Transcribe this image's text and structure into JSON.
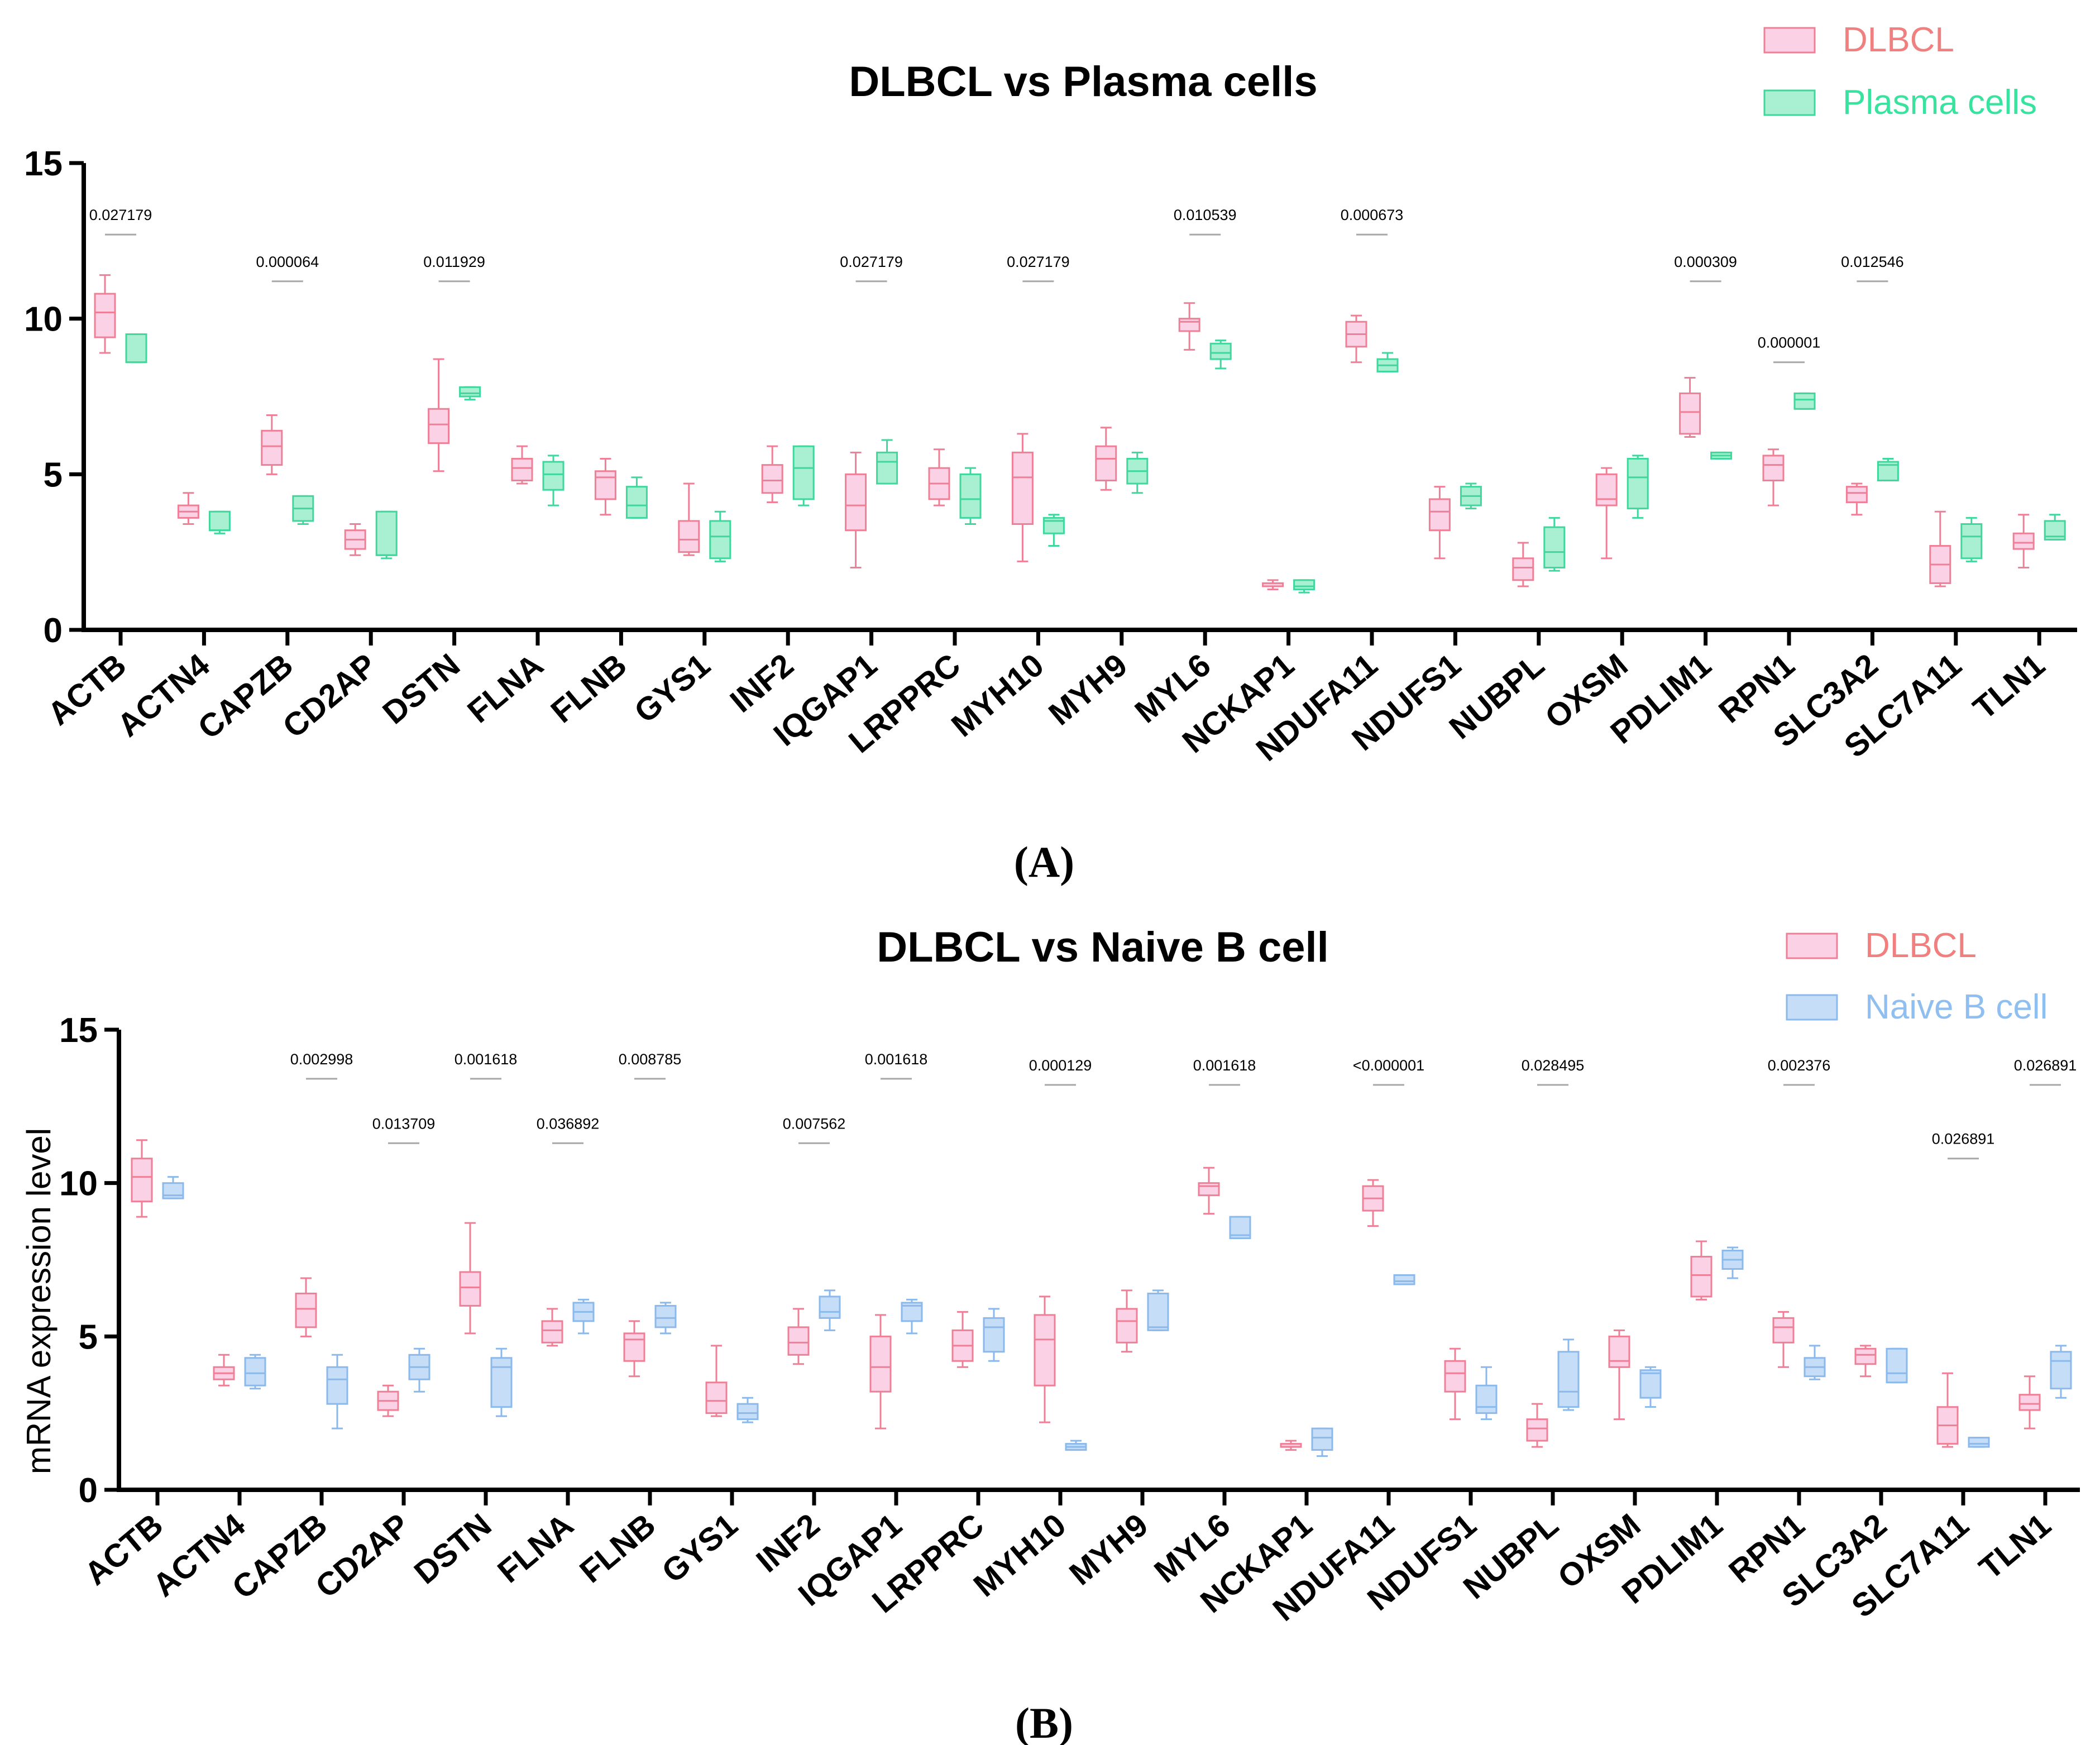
{
  "colors": {
    "dlbcl_fill": "#fbd1e6",
    "dlbcl_stroke": "#ef7f96",
    "plasma_fill": "#a9efd2",
    "plasma_stroke": "#3fd79c",
    "naive_fill": "#c5ddf7",
    "naive_stroke": "#8bb9ec",
    "dlbcl_text": "#f08080",
    "plasma_text": "#37e39e",
    "naive_text": "#8fbff0",
    "axis": "#000000",
    "pbar": "#a8a8a8"
  },
  "icons": [
    "legend-swatch-icon"
  ],
  "chart_data": [
    {
      "id": "A",
      "type": "box",
      "title": "DLBCL vs Plasma cells",
      "panel_label": "(A)",
      "ylabel": "",
      "ylim": [
        0,
        15
      ],
      "yticks": [
        "0",
        "5",
        "10",
        "15"
      ],
      "legend_position": "top-right",
      "legend": [
        "DLBCL",
        "Plasma cells"
      ],
      "categories": [
        "ACTB",
        "ACTN4",
        "CAPZB",
        "CD2AP",
        "DSTN",
        "FLNA",
        "FLNB",
        "GYS1",
        "INF2",
        "IQGAP1",
        "LRPPRC",
        "MYH10",
        "MYH9",
        "MYL6",
        "NCKAP1",
        "NDUFA11",
        "NDUFS1",
        "NUBPL",
        "OXSM",
        "PDLIM1",
        "RPN1",
        "SLC3A2",
        "SLC7A11",
        "TLN1"
      ],
      "series": [
        {
          "name": "DLBCL",
          "boxes": [
            {
              "min": 8.9,
              "q1": 9.4,
              "med": 10.2,
              "q3": 10.8,
              "max": 11.4
            },
            {
              "min": 3.4,
              "q1": 3.6,
              "med": 3.8,
              "q3": 4.0,
              "max": 4.4
            },
            {
              "min": 5.0,
              "q1": 5.3,
              "med": 5.9,
              "q3": 6.4,
              "max": 6.9
            },
            {
              "min": 2.4,
              "q1": 2.6,
              "med": 2.9,
              "q3": 3.2,
              "max": 3.4
            },
            {
              "min": 5.1,
              "q1": 6.0,
              "med": 6.6,
              "q3": 7.1,
              "max": 8.7
            },
            {
              "min": 4.7,
              "q1": 4.8,
              "med": 5.2,
              "q3": 5.5,
              "max": 5.9
            },
            {
              "min": 3.7,
              "q1": 4.2,
              "med": 4.9,
              "q3": 5.1,
              "max": 5.5
            },
            {
              "min": 2.4,
              "q1": 2.5,
              "med": 2.9,
              "q3": 3.5,
              "max": 4.7
            },
            {
              "min": 4.1,
              "q1": 4.4,
              "med": 4.8,
              "q3": 5.3,
              "max": 5.9
            },
            {
              "min": 2.0,
              "q1": 3.2,
              "med": 4.0,
              "q3": 5.0,
              "max": 5.7
            },
            {
              "min": 4.0,
              "q1": 4.2,
              "med": 4.7,
              "q3": 5.2,
              "max": 5.8
            },
            {
              "min": 2.2,
              "q1": 3.4,
              "med": 4.9,
              "q3": 5.7,
              "max": 6.3
            },
            {
              "min": 4.5,
              "q1": 4.8,
              "med": 5.5,
              "q3": 5.9,
              "max": 6.5
            },
            {
              "min": 9.0,
              "q1": 9.6,
              "med": 9.9,
              "q3": 10.0,
              "max": 10.5
            },
            {
              "min": 1.3,
              "q1": 1.4,
              "med": 1.4,
              "q3": 1.5,
              "max": 1.6
            },
            {
              "min": 8.6,
              "q1": 9.1,
              "med": 9.5,
              "q3": 9.9,
              "max": 10.1
            },
            {
              "min": 2.3,
              "q1": 3.2,
              "med": 3.8,
              "q3": 4.2,
              "max": 4.6
            },
            {
              "min": 1.4,
              "q1": 1.6,
              "med": 2.0,
              "q3": 2.3,
              "max": 2.8
            },
            {
              "min": 2.3,
              "q1": 4.0,
              "med": 4.2,
              "q3": 5.0,
              "max": 5.2
            },
            {
              "min": 6.2,
              "q1": 6.3,
              "med": 7.0,
              "q3": 7.6,
              "max": 8.1
            },
            {
              "min": 4.0,
              "q1": 4.8,
              "med": 5.3,
              "q3": 5.6,
              "max": 5.8
            },
            {
              "min": 3.7,
              "q1": 4.1,
              "med": 4.4,
              "q3": 4.6,
              "max": 4.7
            },
            {
              "min": 1.4,
              "q1": 1.5,
              "med": 2.1,
              "q3": 2.7,
              "max": 3.8
            },
            {
              "min": 2.0,
              "q1": 2.6,
              "med": 2.8,
              "q3": 3.1,
              "max": 3.7
            }
          ]
        },
        {
          "name": "Plasma cells",
          "boxes": [
            {
              "min": 8.6,
              "q1": 8.6,
              "med": 8.6,
              "q3": 9.5,
              "max": 9.5
            },
            {
              "min": 3.1,
              "q1": 3.2,
              "med": 3.2,
              "q3": 3.8,
              "max": 3.8
            },
            {
              "min": 3.4,
              "q1": 3.5,
              "med": 3.9,
              "q3": 4.3,
              "max": 4.3
            },
            {
              "min": 2.3,
              "q1": 2.4,
              "med": 2.4,
              "q3": 3.8,
              "max": 3.8
            },
            {
              "min": 7.4,
              "q1": 7.5,
              "med": 7.6,
              "q3": 7.8,
              "max": 7.8
            },
            {
              "min": 4.0,
              "q1": 4.5,
              "med": 5.0,
              "q3": 5.4,
              "max": 5.6
            },
            {
              "min": 3.6,
              "q1": 3.6,
              "med": 4.0,
              "q3": 4.6,
              "max": 4.9
            },
            {
              "min": 2.2,
              "q1": 2.3,
              "med": 3.0,
              "q3": 3.5,
              "max": 3.8
            },
            {
              "min": 4.0,
              "q1": 4.2,
              "med": 5.2,
              "q3": 5.9,
              "max": 5.9
            },
            {
              "min": 4.7,
              "q1": 4.7,
              "med": 5.4,
              "q3": 5.7,
              "max": 6.1
            },
            {
              "min": 3.4,
              "q1": 3.6,
              "med": 4.2,
              "q3": 5.0,
              "max": 5.2
            },
            {
              "min": 2.7,
              "q1": 3.1,
              "med": 3.5,
              "q3": 3.6,
              "max": 3.7
            },
            {
              "min": 4.4,
              "q1": 4.7,
              "med": 5.1,
              "q3": 5.5,
              "max": 5.7
            },
            {
              "min": 8.4,
              "q1": 8.7,
              "med": 8.9,
              "q3": 9.2,
              "max": 9.3
            },
            {
              "min": 1.2,
              "q1": 1.3,
              "med": 1.4,
              "q3": 1.6,
              "max": 1.6
            },
            {
              "min": 8.3,
              "q1": 8.3,
              "med": 8.5,
              "q3": 8.7,
              "max": 8.9
            },
            {
              "min": 3.9,
              "q1": 4.0,
              "med": 4.3,
              "q3": 4.6,
              "max": 4.7
            },
            {
              "min": 1.9,
              "q1": 2.0,
              "med": 2.5,
              "q3": 3.3,
              "max": 3.6
            },
            {
              "min": 3.6,
              "q1": 3.9,
              "med": 4.9,
              "q3": 5.5,
              "max": 5.6
            },
            {
              "min": 5.5,
              "q1": 5.5,
              "med": 5.6,
              "q3": 5.7,
              "max": 5.7
            },
            {
              "min": 7.1,
              "q1": 7.1,
              "med": 7.4,
              "q3": 7.6,
              "max": 7.6
            },
            {
              "min": 4.8,
              "q1": 4.8,
              "med": 5.3,
              "q3": 5.4,
              "max": 5.5
            },
            {
              "min": 2.2,
              "q1": 2.3,
              "med": 3.0,
              "q3": 3.4,
              "max": 3.6
            },
            {
              "min": 2.9,
              "q1": 2.9,
              "med": 3.0,
              "q3": 3.5,
              "max": 3.7
            }
          ]
        }
      ],
      "pvalues": [
        {
          "gene": "ACTB",
          "text": "0.027179",
          "y": 12.7
        },
        {
          "gene": "CAPZB",
          "text": "0.000064",
          "y": 11.2
        },
        {
          "gene": "DSTN",
          "text": "0.011929",
          "y": 11.2
        },
        {
          "gene": "IQGAP1",
          "text": "0.027179",
          "y": 11.2
        },
        {
          "gene": "MYH10",
          "text": "0.027179",
          "y": 11.2
        },
        {
          "gene": "MYL6",
          "text": "0.010539",
          "y": 12.7
        },
        {
          "gene": "NDUFA11",
          "text": "0.000673",
          "y": 12.7
        },
        {
          "gene": "PDLIM1",
          "text": "0.000309",
          "y": 11.2
        },
        {
          "gene": "RPN1",
          "text": "0.000001",
          "y": 8.6
        },
        {
          "gene": "SLC3A2",
          "text": "0.012546",
          "y": 11.2
        }
      ]
    },
    {
      "id": "B",
      "type": "box",
      "title": "DLBCL vs Naive B cell",
      "panel_label": "(B)",
      "ylabel": "mRNA expression level",
      "ylim": [
        0,
        15
      ],
      "yticks": [
        "0",
        "5",
        "10",
        "15"
      ],
      "legend_position": "top-right",
      "legend": [
        "DLBCL",
        "Naive B cell"
      ],
      "categories": [
        "ACTB",
        "ACTN4",
        "CAPZB",
        "CD2AP",
        "DSTN",
        "FLNA",
        "FLNB",
        "GYS1",
        "INF2",
        "IQGAP1",
        "LRPPRC",
        "MYH10",
        "MYH9",
        "MYL6",
        "NCKAP1",
        "NDUFA11",
        "NDUFS1",
        "NUBPL",
        "OXSM",
        "PDLIM1",
        "RPN1",
        "SLC3A2",
        "SLC7A11",
        "TLN1"
      ],
      "series": [
        {
          "name": "DLBCL",
          "boxes": [
            {
              "min": 8.9,
              "q1": 9.4,
              "med": 10.2,
              "q3": 10.8,
              "max": 11.4
            },
            {
              "min": 3.4,
              "q1": 3.6,
              "med": 3.8,
              "q3": 4.0,
              "max": 4.4
            },
            {
              "min": 5.0,
              "q1": 5.3,
              "med": 5.9,
              "q3": 6.4,
              "max": 6.9
            },
            {
              "min": 2.4,
              "q1": 2.6,
              "med": 2.9,
              "q3": 3.2,
              "max": 3.4
            },
            {
              "min": 5.1,
              "q1": 6.0,
              "med": 6.6,
              "q3": 7.1,
              "max": 8.7
            },
            {
              "min": 4.7,
              "q1": 4.8,
              "med": 5.2,
              "q3": 5.5,
              "max": 5.9
            },
            {
              "min": 3.7,
              "q1": 4.2,
              "med": 4.9,
              "q3": 5.1,
              "max": 5.5
            },
            {
              "min": 2.4,
              "q1": 2.5,
              "med": 2.9,
              "q3": 3.5,
              "max": 4.7
            },
            {
              "min": 4.1,
              "q1": 4.4,
              "med": 4.8,
              "q3": 5.3,
              "max": 5.9
            },
            {
              "min": 2.0,
              "q1": 3.2,
              "med": 4.0,
              "q3": 5.0,
              "max": 5.7
            },
            {
              "min": 4.0,
              "q1": 4.2,
              "med": 4.7,
              "q3": 5.2,
              "max": 5.8
            },
            {
              "min": 2.2,
              "q1": 3.4,
              "med": 4.9,
              "q3": 5.7,
              "max": 6.3
            },
            {
              "min": 4.5,
              "q1": 4.8,
              "med": 5.5,
              "q3": 5.9,
              "max": 6.5
            },
            {
              "min": 9.0,
              "q1": 9.6,
              "med": 9.9,
              "q3": 10.0,
              "max": 10.5
            },
            {
              "min": 1.3,
              "q1": 1.4,
              "med": 1.4,
              "q3": 1.5,
              "max": 1.6
            },
            {
              "min": 8.6,
              "q1": 9.1,
              "med": 9.5,
              "q3": 9.9,
              "max": 10.1
            },
            {
              "min": 2.3,
              "q1": 3.2,
              "med": 3.8,
              "q3": 4.2,
              "max": 4.6
            },
            {
              "min": 1.4,
              "q1": 1.6,
              "med": 2.0,
              "q3": 2.3,
              "max": 2.8
            },
            {
              "min": 2.3,
              "q1": 4.0,
              "med": 4.2,
              "q3": 5.0,
              "max": 5.2
            },
            {
              "min": 6.2,
              "q1": 6.3,
              "med": 7.0,
              "q3": 7.6,
              "max": 8.1
            },
            {
              "min": 4.0,
              "q1": 4.8,
              "med": 5.3,
              "q3": 5.6,
              "max": 5.8
            },
            {
              "min": 3.7,
              "q1": 4.1,
              "med": 4.4,
              "q3": 4.6,
              "max": 4.7
            },
            {
              "min": 1.4,
              "q1": 1.5,
              "med": 2.1,
              "q3": 2.7,
              "max": 3.8
            },
            {
              "min": 2.0,
              "q1": 2.6,
              "med": 2.8,
              "q3": 3.1,
              "max": 3.7
            }
          ]
        },
        {
          "name": "Naive B cell",
          "boxes": [
            {
              "min": 9.5,
              "q1": 9.5,
              "med": 9.6,
              "q3": 10.0,
              "max": 10.2
            },
            {
              "min": 3.3,
              "q1": 3.4,
              "med": 3.8,
              "q3": 4.3,
              "max": 4.4
            },
            {
              "min": 2.0,
              "q1": 2.8,
              "med": 3.6,
              "q3": 4.0,
              "max": 4.4
            },
            {
              "min": 3.2,
              "q1": 3.6,
              "med": 4.0,
              "q3": 4.4,
              "max": 4.6
            },
            {
              "min": 2.4,
              "q1": 2.7,
              "med": 4.0,
              "q3": 4.3,
              "max": 4.6
            },
            {
              "min": 5.1,
              "q1": 5.5,
              "med": 5.8,
              "q3": 6.1,
              "max": 6.2
            },
            {
              "min": 5.1,
              "q1": 5.3,
              "med": 5.6,
              "q3": 6.0,
              "max": 6.1
            },
            {
              "min": 2.2,
              "q1": 2.3,
              "med": 2.5,
              "q3": 2.8,
              "max": 3.0
            },
            {
              "min": 5.2,
              "q1": 5.6,
              "med": 5.8,
              "q3": 6.3,
              "max": 6.5
            },
            {
              "min": 5.1,
              "q1": 5.5,
              "med": 6.0,
              "q3": 6.1,
              "max": 6.2
            },
            {
              "min": 4.2,
              "q1": 4.5,
              "med": 5.3,
              "q3": 5.6,
              "max": 5.9
            },
            {
              "min": 1.3,
              "q1": 1.3,
              "med": 1.4,
              "q3": 1.5,
              "max": 1.6
            },
            {
              "min": 5.2,
              "q1": 5.2,
              "med": 5.3,
              "q3": 6.4,
              "max": 6.5
            },
            {
              "min": 8.2,
              "q1": 8.2,
              "med": 8.3,
              "q3": 8.9,
              "max": 8.9
            },
            {
              "min": 1.1,
              "q1": 1.3,
              "med": 1.7,
              "q3": 2.0,
              "max": 2.0
            },
            {
              "min": 6.7,
              "q1": 6.7,
              "med": 6.8,
              "q3": 7.0,
              "max": 7.0
            },
            {
              "min": 2.3,
              "q1": 2.5,
              "med": 2.7,
              "q3": 3.4,
              "max": 4.0
            },
            {
              "min": 2.6,
              "q1": 2.7,
              "med": 3.2,
              "q3": 4.5,
              "max": 4.9
            },
            {
              "min": 2.7,
              "q1": 3.0,
              "med": 3.8,
              "q3": 3.9,
              "max": 4.0
            },
            {
              "min": 6.9,
              "q1": 7.2,
              "med": 7.5,
              "q3": 7.8,
              "max": 7.9
            },
            {
              "min": 3.6,
              "q1": 3.7,
              "med": 4.0,
              "q3": 4.3,
              "max": 4.7
            },
            {
              "min": 3.5,
              "q1": 3.5,
              "med": 3.8,
              "q3": 4.6,
              "max": 4.6
            },
            {
              "min": 1.4,
              "q1": 1.4,
              "med": 1.5,
              "q3": 1.7,
              "max": 1.7
            },
            {
              "min": 3.0,
              "q1": 3.3,
              "med": 4.2,
              "q3": 4.5,
              "max": 4.7
            }
          ]
        }
      ],
      "pvalues": [
        {
          "gene": "CAPZB",
          "text": "0.002998",
          "y": 13.4
        },
        {
          "gene": "CD2AP",
          "text": "0.013709",
          "y": 11.3
        },
        {
          "gene": "DSTN",
          "text": "0.001618",
          "y": 13.4
        },
        {
          "gene": "FLNA",
          "text": "0.036892",
          "y": 11.3
        },
        {
          "gene": "FLNB",
          "text": "0.008785",
          "y": 13.4
        },
        {
          "gene": "INF2",
          "text": "0.007562",
          "y": 11.3
        },
        {
          "gene": "IQGAP1",
          "text": "0.001618",
          "y": 13.4
        },
        {
          "gene": "MYH10",
          "text": "0.000129",
          "y": 13.2
        },
        {
          "gene": "MYL6",
          "text": "0.001618",
          "y": 13.2
        },
        {
          "gene": "NDUFA11",
          "text": "<0.000001",
          "y": 13.2
        },
        {
          "gene": "NUBPL",
          "text": "0.028495",
          "y": 13.2
        },
        {
          "gene": "RPN1",
          "text": "0.002376",
          "y": 13.2
        },
        {
          "gene": "SLC7A11",
          "text": "0.026891",
          "y": 10.8
        },
        {
          "gene": "TLN1",
          "text": "0.026891",
          "y": 13.2
        }
      ]
    }
  ]
}
